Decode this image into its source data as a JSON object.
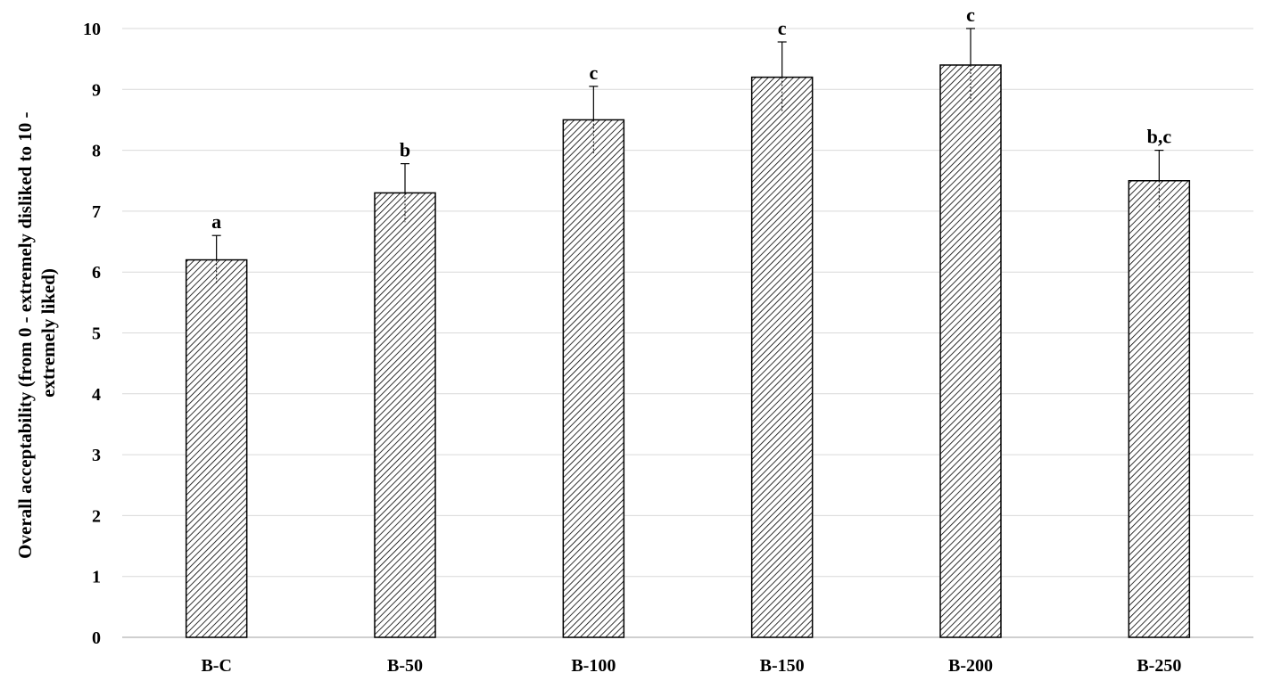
{
  "chart_data": {
    "type": "bar",
    "ylabel_lines": [
      "Overall acceptability (from 0 - extremely disliked to 10 -",
      "extremely liked)"
    ],
    "xlabel": "",
    "ylim": [
      0,
      10
    ],
    "yticks": [
      0,
      1,
      2,
      3,
      4,
      5,
      6,
      7,
      8,
      9,
      10
    ],
    "grid": true,
    "categories": [
      "B-C",
      "B-50",
      "B-100",
      "B-150",
      "B-200",
      "B-250"
    ],
    "values": [
      6.2,
      7.3,
      8.5,
      9.2,
      9.4,
      7.5
    ],
    "errors": [
      0.4,
      0.48,
      0.55,
      0.58,
      0.6,
      0.5
    ],
    "significance_labels": [
      "a",
      "b",
      "c",
      "c",
      "c",
      "b,c"
    ],
    "colors": {
      "bar_fill_pattern": "diagonal-hatch",
      "bar_stroke": "#000000",
      "grid": "#d9d9d9"
    }
  }
}
